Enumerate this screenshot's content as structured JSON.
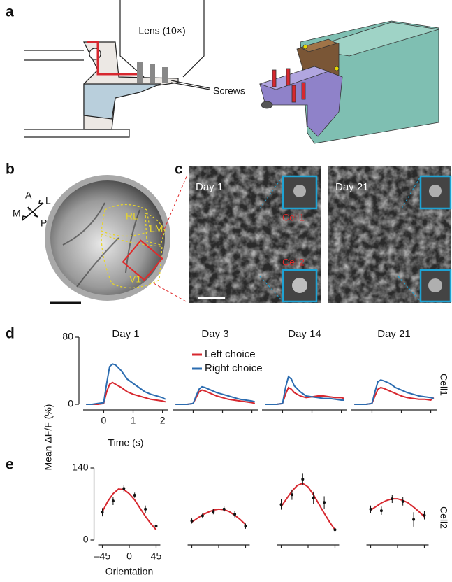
{
  "panel_labels": [
    "a",
    "b",
    "c",
    "d",
    "e"
  ],
  "panel_a": {
    "lens_label": "Lens (10×)",
    "screws_label": "Screws"
  },
  "panel_b": {
    "compass": [
      "A",
      "L",
      "P",
      "M"
    ],
    "areas": [
      "RL",
      "LM",
      "V1"
    ]
  },
  "panel_c": {
    "day_labels": [
      "Day 1",
      "Day 21"
    ],
    "cell_labels": [
      "Cell1",
      "Cell2"
    ]
  },
  "y_axis_label": "Mean ΔF/F (%)",
  "chart_data": [
    {
      "type": "line",
      "xlabel": "Time (s)",
      "row_label": "Cell1",
      "panel_titles": [
        "Day 1",
        "Day 3",
        "Day 14",
        "Day 21"
      ],
      "xlim": [
        -0.7,
        2.2
      ],
      "xticks": [
        0,
        1,
        2
      ],
      "ylim": [
        0,
        80
      ],
      "yticks": [
        0,
        80
      ],
      "x": [
        -0.6,
        -0.4,
        -0.2,
        0,
        0.1,
        0.2,
        0.3,
        0.4,
        0.6,
        0.8,
        1.0,
        1.2,
        1.4,
        1.6,
        1.8,
        2.0,
        2.1
      ],
      "series": [
        {
          "name": "Left choice",
          "color": "#d7282f",
          "values": [
            [
              0,
              0,
              0,
              1,
              15,
              24,
              26,
              24,
              20,
              15,
              12,
              10,
              8,
              6,
              5,
              4,
              3
            ],
            [
              0,
              0,
              0,
              1,
              8,
              15,
              17,
              16,
              13,
              10,
              8,
              6,
              5,
              4,
              3,
              2,
              1
            ],
            [
              0,
              0,
              0,
              1,
              12,
              20,
              18,
              14,
              10,
              8,
              9,
              10,
              10,
              9,
              8,
              8,
              7
            ],
            [
              0,
              0,
              0,
              1,
              10,
              18,
              20,
              19,
              16,
              13,
              10,
              8,
              7,
              6,
              6,
              5,
              8
            ]
          ]
        },
        {
          "name": "Right choice",
          "color": "#2b6cb0",
          "values": [
            [
              0,
              0,
              1,
              2,
              25,
              45,
              48,
              47,
              40,
              30,
              25,
              20,
              15,
              12,
              10,
              8,
              6
            ],
            [
              0,
              0,
              0,
              1,
              10,
              18,
              21,
              20,
              17,
              14,
              12,
              10,
              8,
              6,
              5,
              4,
              3
            ],
            [
              0,
              0,
              0,
              1,
              20,
              33,
              30,
              22,
              15,
              10,
              9,
              8,
              7,
              7,
              6,
              5,
              5
            ],
            [
              0,
              0,
              0,
              1,
              15,
              27,
              29,
              28,
              25,
              20,
              17,
              14,
              12,
              10,
              9,
              8,
              7
            ]
          ]
        }
      ]
    },
    {
      "type": "scatter",
      "xlabel": "Orientation",
      "row_label": "Cell2",
      "xlim": [
        -52,
        52
      ],
      "xticks": [
        {
          "value": -45,
          "label": "–45"
        },
        0,
        45
      ],
      "ylim": [
        0,
        140
      ],
      "yticks": [
        0,
        140
      ],
      "x": [
        -45,
        -27,
        -9,
        9,
        27,
        45
      ],
      "values": [
        [
          54,
          76,
          100,
          87,
          60,
          27
        ],
        [
          37,
          47,
          55,
          60,
          50,
          27
        ],
        [
          69,
          88,
          118,
          82,
          73,
          20
        ],
        [
          60,
          57,
          80,
          75,
          40,
          48
        ]
      ],
      "errors": [
        [
          8,
          8,
          6,
          5,
          7,
          7
        ],
        [
          5,
          5,
          5,
          5,
          6,
          5
        ],
        [
          10,
          10,
          12,
          12,
          12,
          6
        ],
        [
          7,
          8,
          8,
          8,
          14,
          8
        ]
      ],
      "fit_color": "#d7282f",
      "fit_x": [
        -45,
        -36,
        -27,
        -18,
        -9,
        0,
        9,
        18,
        27,
        36,
        45
      ],
      "fit": [
        [
          55,
          75,
          90,
          99,
          98,
          90,
          78,
          62,
          46,
          32,
          20
        ],
        [
          35,
          42,
          49,
          54,
          58,
          60,
          59,
          55,
          48,
          40,
          30
        ],
        [
          65,
          80,
          95,
          106,
          110,
          103,
          88,
          70,
          52,
          35,
          20
        ],
        [
          58,
          65,
          72,
          77,
          80,
          80,
          77,
          72,
          64,
          55,
          45
        ]
      ]
    }
  ]
}
